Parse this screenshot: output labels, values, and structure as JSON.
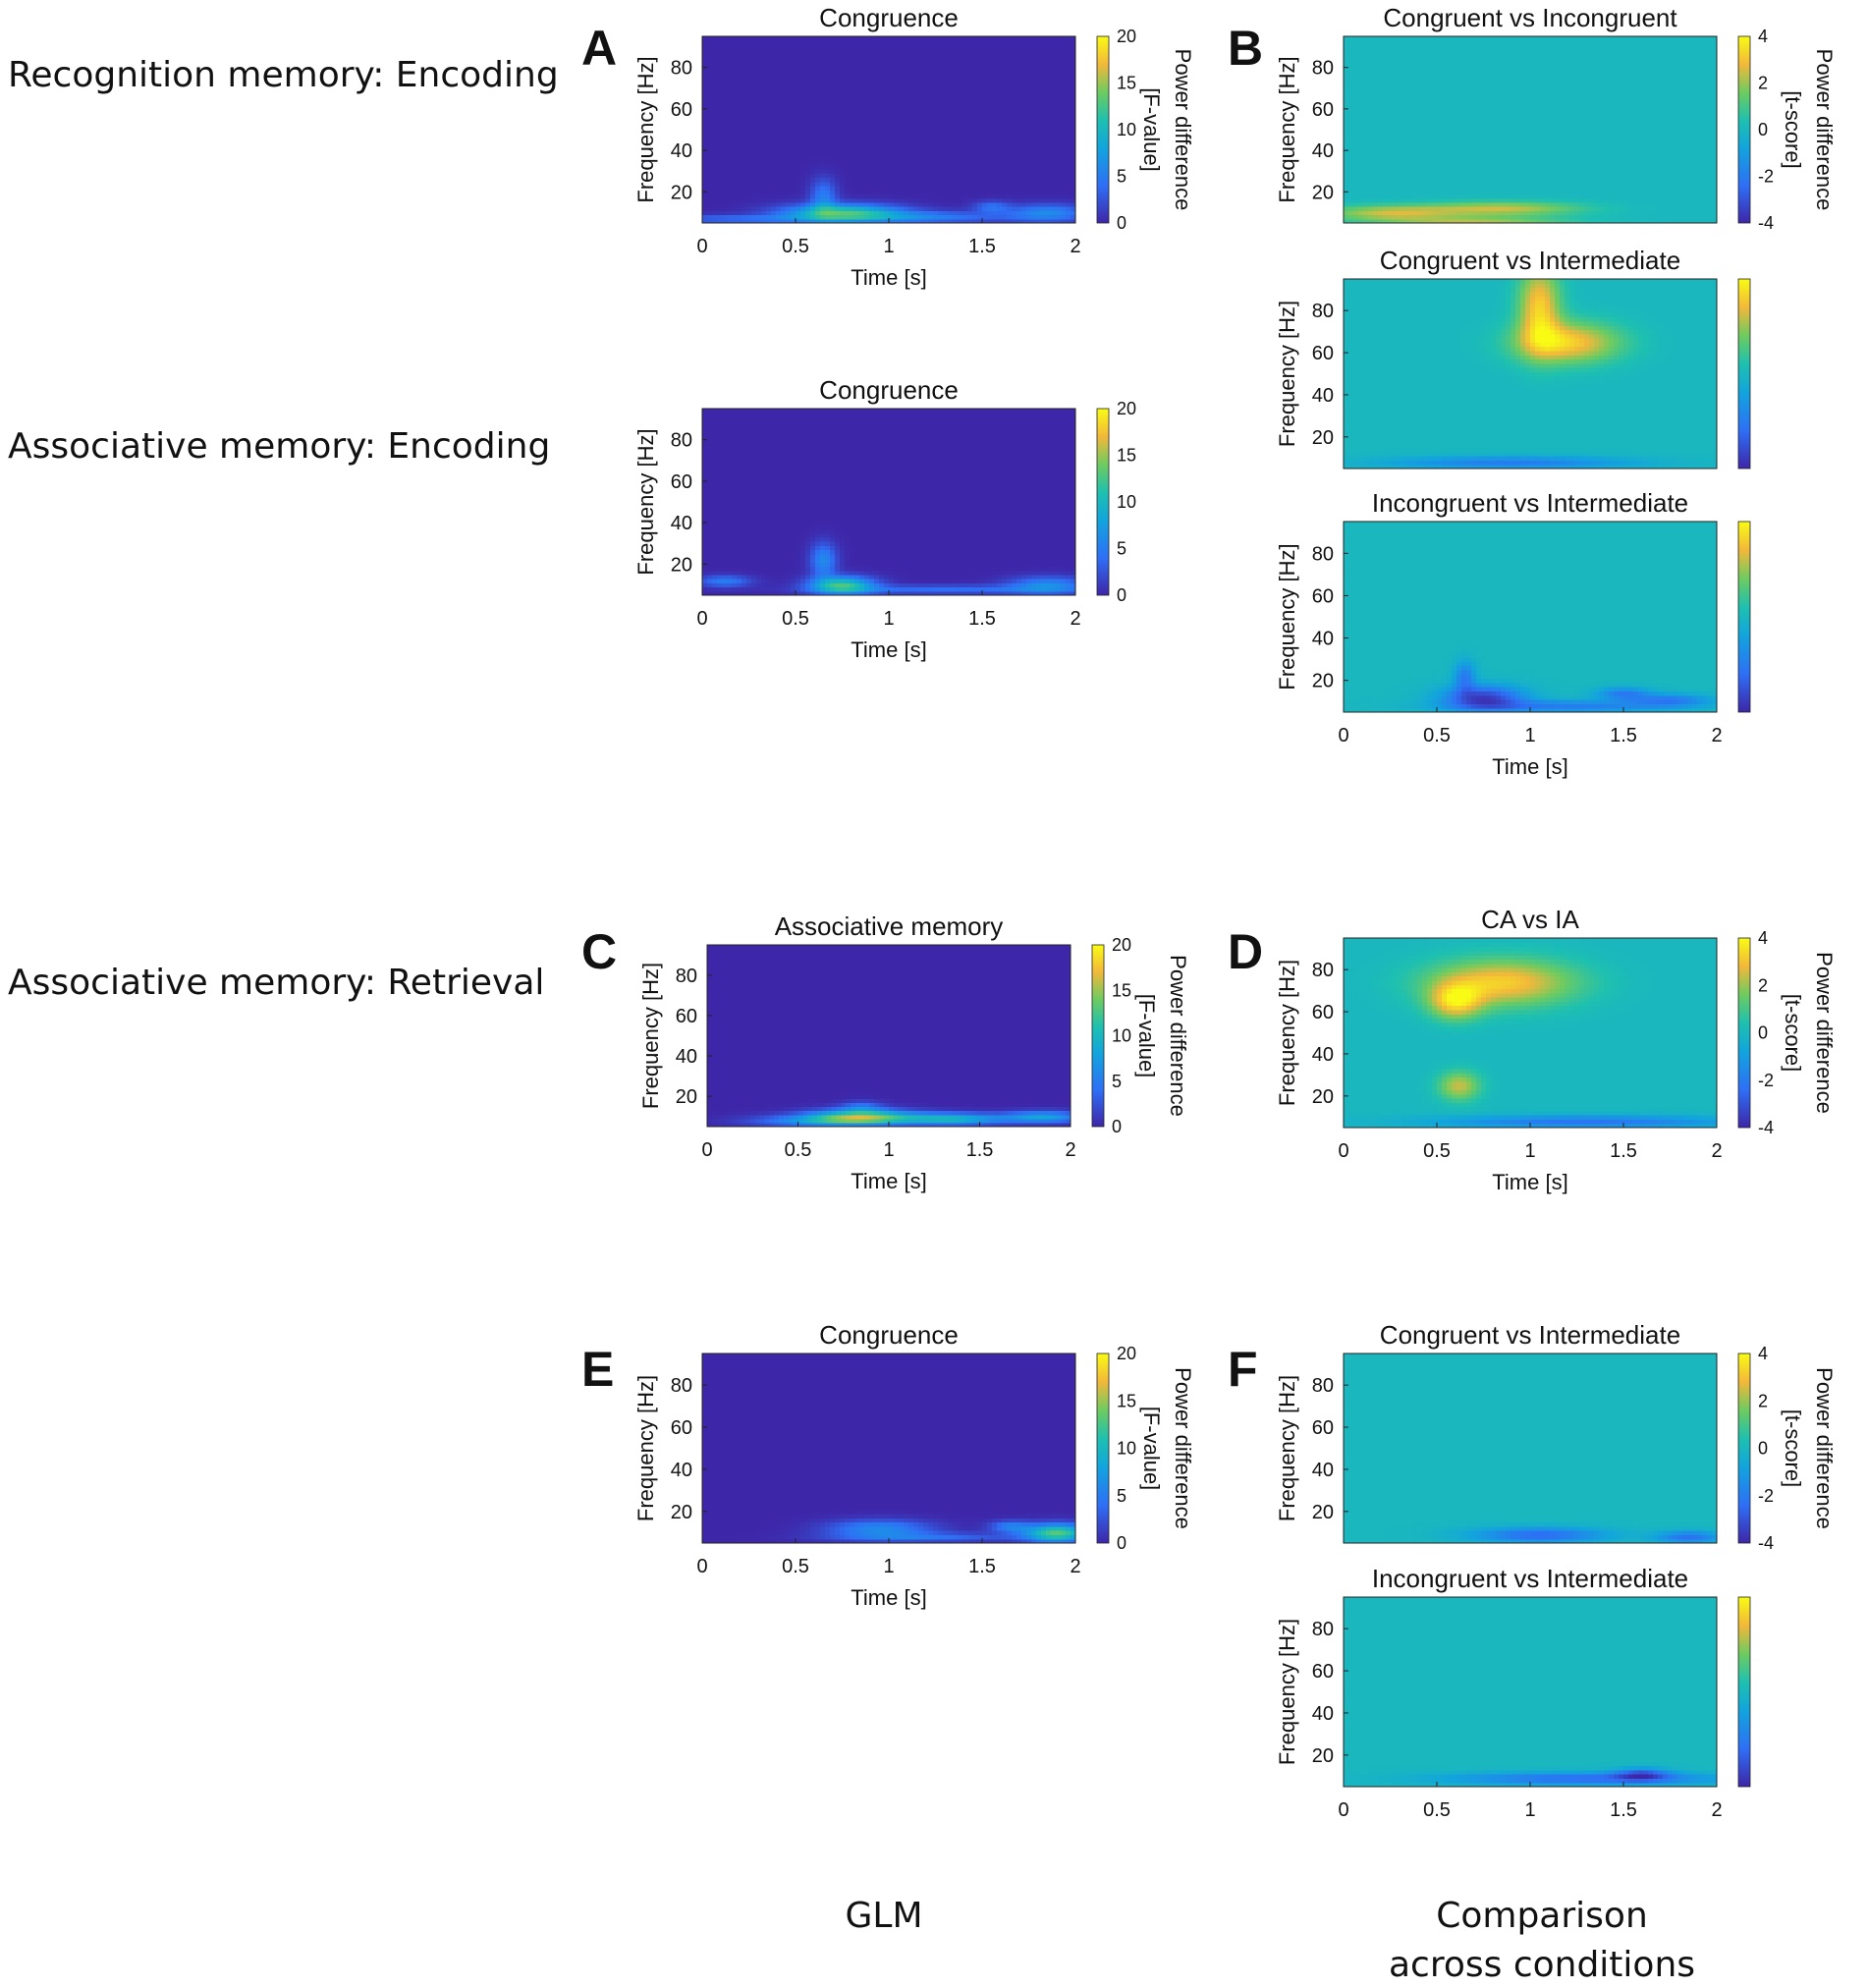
{
  "row_labels": {
    "recognition_encoding": "Recognition memory: Encoding",
    "associative_encoding": "Associative memory: Encoding",
    "associative_retrieval": "Associative memory: Retrieval"
  },
  "panel_letters": [
    "A",
    "B",
    "C",
    "D",
    "E",
    "F"
  ],
  "footer": {
    "glm": "GLM",
    "comparison_line1": "Comparison",
    "comparison_line2": "across conditions"
  },
  "colors": {
    "low": "#3a28a8",
    "mid": "#1ec0b0",
    "high": "#f9e032"
  },
  "chart_data": [
    {
      "id": "A1",
      "type": "heatmap",
      "title": "Congruence",
      "xlabel": "Time [s]",
      "ylabel": "Frequency [Hz]",
      "xlim": [
        0,
        2
      ],
      "ylim": [
        5,
        95
      ],
      "xticks": [
        "0",
        "0.5",
        "1",
        "1.5",
        "2"
      ],
      "yticks": [
        "20",
        "40",
        "60",
        "80"
      ],
      "colorbar": {
        "range": [
          0,
          20
        ],
        "ticks": [
          "0",
          "5",
          "10",
          "15",
          "20"
        ],
        "label_line1": "Power difference",
        "label_line2": "[F-value]"
      },
      "background_value": 0,
      "blobs": [
        {
          "t": 0.75,
          "f": 10,
          "sx": 0.22,
          "sf": 3,
          "v": 12
        },
        {
          "t": 0.65,
          "f": 18,
          "sx": 0.05,
          "sf": 6,
          "v": 5
        },
        {
          "t": 1.2,
          "f": 8,
          "sx": 0.3,
          "sf": 2,
          "v": 5
        },
        {
          "t": 1.55,
          "f": 13,
          "sx": 0.07,
          "sf": 2,
          "v": 4
        },
        {
          "t": 1.85,
          "f": 10,
          "sx": 0.15,
          "sf": 3,
          "v": 6
        },
        {
          "t": 0.2,
          "f": 7,
          "sx": 0.35,
          "sf": 1.5,
          "v": 4
        }
      ]
    },
    {
      "id": "A2",
      "type": "heatmap",
      "title": "Congruence",
      "xlabel": "Time [s]",
      "ylabel": "Frequency [Hz]",
      "xlim": [
        0,
        2
      ],
      "ylim": [
        5,
        95
      ],
      "xticks": [
        "0",
        "0.5",
        "1",
        "1.5",
        "2"
      ],
      "yticks": [
        "20",
        "40",
        "60",
        "80"
      ],
      "colorbar": {
        "range": [
          0,
          20
        ],
        "ticks": [
          "0",
          "5",
          "10",
          "15",
          "20"
        ]
      },
      "background_value": 0,
      "blobs": [
        {
          "t": 0.75,
          "f": 10,
          "sx": 0.12,
          "sf": 3,
          "v": 12
        },
        {
          "t": 0.65,
          "f": 22,
          "sx": 0.05,
          "sf": 6,
          "v": 6
        },
        {
          "t": 0.12,
          "f": 12,
          "sx": 0.1,
          "sf": 2,
          "v": 5
        },
        {
          "t": 1.3,
          "f": 8,
          "sx": 0.45,
          "sf": 1.5,
          "v": 4
        },
        {
          "t": 1.85,
          "f": 10,
          "sx": 0.15,
          "sf": 3,
          "v": 6
        }
      ]
    },
    {
      "id": "B1",
      "type": "heatmap",
      "title": "Congruent vs Incongruent",
      "xlabel": "",
      "ylabel": "Frequency [Hz]",
      "xlim": [
        0,
        2
      ],
      "ylim": [
        5,
        95
      ],
      "xticks": [],
      "yticks": [
        "20",
        "40",
        "60",
        "80"
      ],
      "colorbar": {
        "range": [
          -4,
          4
        ],
        "ticks": [
          "-4",
          "-2",
          "0",
          "2",
          "4"
        ],
        "label_line1": "Power difference",
        "label_line2": "[t-score]"
      },
      "background_value": 0,
      "blobs": [
        {
          "t": 0.25,
          "f": 10,
          "sx": 0.25,
          "sf": 2.5,
          "v": 2.4
        },
        {
          "t": 0.85,
          "f": 12,
          "sx": 0.3,
          "sf": 2.5,
          "v": 2.4
        },
        {
          "t": 0.7,
          "f": 6,
          "sx": 0.35,
          "sf": 1.5,
          "v": 2.0
        }
      ]
    },
    {
      "id": "B2",
      "type": "heatmap",
      "title": "Congruent vs Intermediate",
      "xlabel": "",
      "ylabel": "Frequency [Hz]",
      "xlim": [
        0,
        2
      ],
      "ylim": [
        5,
        95
      ],
      "xticks": [],
      "yticks": [
        "20",
        "40",
        "60",
        "80"
      ],
      "colorbar": {
        "range": [
          -4,
          4
        ],
        "ticks": []
      },
      "background_value": 0,
      "blobs": [
        {
          "t": 1.05,
          "f": 82,
          "sx": 0.08,
          "sf": 14,
          "v": 3.2
        },
        {
          "t": 1.2,
          "f": 65,
          "sx": 0.2,
          "sf": 7,
          "v": 3.2
        },
        {
          "t": 0.9,
          "f": 8,
          "sx": 0.45,
          "sf": 2,
          "v": -2.0
        }
      ]
    },
    {
      "id": "B3",
      "type": "heatmap",
      "title": "Incongruent vs Intermediate",
      "xlabel": "Time [s]",
      "ylabel": "Frequency [Hz]",
      "xlim": [
        0,
        2
      ],
      "ylim": [
        5,
        95
      ],
      "xticks": [
        "0",
        "0.5",
        "1",
        "1.5",
        "2"
      ],
      "yticks": [
        "20",
        "40",
        "60",
        "80"
      ],
      "colorbar": {
        "range": [
          -4,
          4
        ],
        "ticks": []
      },
      "background_value": 0,
      "blobs": [
        {
          "t": 0.75,
          "f": 12,
          "sx": 0.15,
          "sf": 4,
          "v": -3.5
        },
        {
          "t": 0.65,
          "f": 22,
          "sx": 0.04,
          "sf": 5,
          "v": -2
        },
        {
          "t": 1.2,
          "f": 8,
          "sx": 0.4,
          "sf": 2,
          "v": -2
        },
        {
          "t": 1.5,
          "f": 14,
          "sx": 0.1,
          "sf": 2,
          "v": -2
        },
        {
          "t": 1.75,
          "f": 11,
          "sx": 0.15,
          "sf": 2,
          "v": -2
        }
      ]
    },
    {
      "id": "C",
      "type": "heatmap",
      "title": "Associative memory",
      "xlabel": "Time [s]",
      "ylabel": "Frequency [Hz]",
      "xlim": [
        0,
        2
      ],
      "ylim": [
        5,
        95
      ],
      "xticks": [
        "0",
        "0.5",
        "1",
        "1.5",
        "2"
      ],
      "yticks": [
        "20",
        "40",
        "60",
        "80"
      ],
      "colorbar": {
        "range": [
          0,
          20
        ],
        "ticks": [
          "0",
          "5",
          "10",
          "15",
          "20"
        ],
        "label_line1": "Power difference",
        "label_line2": "[F-value]"
      },
      "background_value": 0,
      "blobs": [
        {
          "t": 0.85,
          "f": 10,
          "sx": 0.2,
          "sf": 2.5,
          "v": 14
        },
        {
          "t": 1.35,
          "f": 9,
          "sx": 0.2,
          "sf": 2,
          "v": 10
        },
        {
          "t": 0.6,
          "f": 8,
          "sx": 0.25,
          "sf": 2,
          "v": 6
        },
        {
          "t": 0.85,
          "f": 15,
          "sx": 0.08,
          "sf": 2,
          "v": 4
        },
        {
          "t": 1.85,
          "f": 10,
          "sx": 0.15,
          "sf": 2,
          "v": 8
        }
      ]
    },
    {
      "id": "D",
      "type": "heatmap",
      "title": "CA vs IA",
      "xlabel": "Time [s]",
      "ylabel": "Frequency [Hz]",
      "xlim": [
        0,
        2
      ],
      "ylim": [
        5,
        95
      ],
      "xticks": [
        "0",
        "0.5",
        "1",
        "1.5",
        "2"
      ],
      "yticks": [
        "20",
        "40",
        "60",
        "80"
      ],
      "colorbar": {
        "range": [
          -4,
          4
        ],
        "ticks": [
          "-4",
          "-2",
          "0",
          "2",
          "4"
        ],
        "label_line1": "Power difference",
        "label_line2": "[t-score]"
      },
      "background_value": 0,
      "blobs": [
        {
          "t": 0.85,
          "f": 74,
          "sx": 0.28,
          "sf": 8,
          "v": 3.2
        },
        {
          "t": 0.6,
          "f": 65,
          "sx": 0.1,
          "sf": 6,
          "v": 3
        },
        {
          "t": 0.62,
          "f": 25,
          "sx": 0.08,
          "sf": 5,
          "v": 2.4
        },
        {
          "t": 1.3,
          "f": 8,
          "sx": 0.55,
          "sf": 2,
          "v": -2.2
        }
      ]
    },
    {
      "id": "E",
      "type": "heatmap",
      "title": "Congruence",
      "xlabel": "Time [s]",
      "ylabel": "Frequency [Hz]",
      "xlim": [
        0,
        2
      ],
      "ylim": [
        5,
        95
      ],
      "xticks": [
        "0",
        "0.5",
        "1",
        "1.5",
        "2"
      ],
      "yticks": [
        "20",
        "40",
        "60",
        "80"
      ],
      "colorbar": {
        "range": [
          0,
          20
        ],
        "ticks": [
          "0",
          "5",
          "10",
          "15",
          "20"
        ],
        "label_line1": "Power difference",
        "label_line2": "[F-value]"
      },
      "background_value": 0,
      "blobs": [
        {
          "t": 0.95,
          "f": 12,
          "sx": 0.2,
          "sf": 3,
          "v": 6
        },
        {
          "t": 1.9,
          "f": 10,
          "sx": 0.12,
          "sf": 3,
          "v": 13
        },
        {
          "t": 1.2,
          "f": 8,
          "sx": 0.35,
          "sf": 1.5,
          "v": 4
        },
        {
          "t": 1.65,
          "f": 13,
          "sx": 0.08,
          "sf": 2,
          "v": 5
        }
      ]
    },
    {
      "id": "F1",
      "type": "heatmap",
      "title": "Congruent vs Intermediate",
      "xlabel": "",
      "ylabel": "Frequency [Hz]",
      "xlim": [
        0,
        2
      ],
      "ylim": [
        5,
        95
      ],
      "xticks": [],
      "yticks": [
        "20",
        "40",
        "60",
        "80"
      ],
      "colorbar": {
        "range": [
          -4,
          4
        ],
        "ticks": [
          "-4",
          "-2",
          "0",
          "2",
          "4"
        ],
        "label_line1": "Power difference",
        "label_line2": "[t-score]"
      },
      "background_value": 0,
      "blobs": [
        {
          "t": 1.05,
          "f": 9,
          "sx": 0.25,
          "sf": 2.5,
          "v": -2.5
        },
        {
          "t": 1.85,
          "f": 8,
          "sx": 0.12,
          "sf": 2,
          "v": -2.3
        }
      ]
    },
    {
      "id": "F2",
      "type": "heatmap",
      "title": "Incongruent vs Intermediate",
      "xlabel": "",
      "ylabel": "Frequency [Hz]",
      "xlim": [
        0,
        2
      ],
      "ylim": [
        5,
        95
      ],
      "xticks": [
        "0",
        "0.5",
        "1",
        "1.5",
        "2"
      ],
      "yticks": [
        "20",
        "40",
        "60",
        "80"
      ],
      "colorbar": {
        "range": [
          -4,
          4
        ],
        "ticks": []
      },
      "background_value": 0,
      "blobs": [
        {
          "t": 1.3,
          "f": 9,
          "sx": 0.5,
          "sf": 2,
          "v": -2.5
        },
        {
          "t": 1.6,
          "f": 11,
          "sx": 0.1,
          "sf": 2,
          "v": -2.6
        }
      ]
    }
  ]
}
